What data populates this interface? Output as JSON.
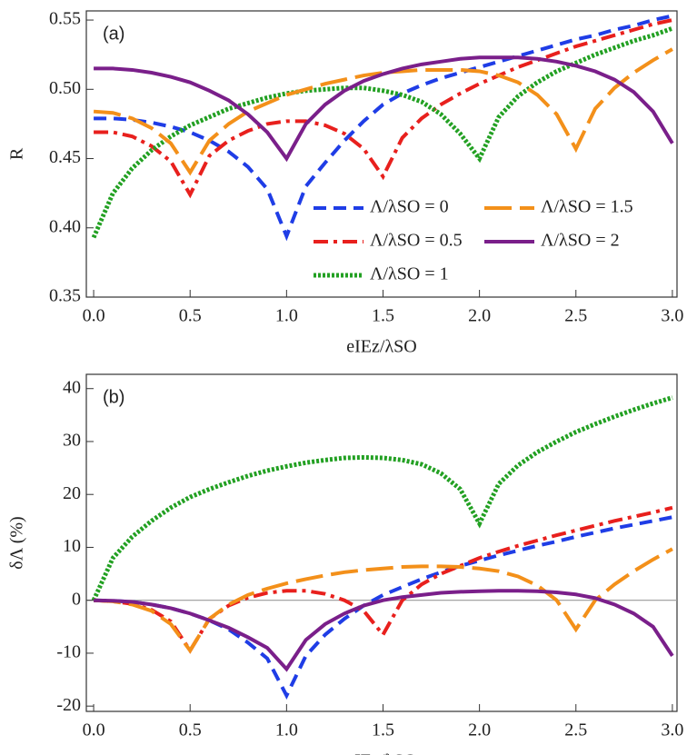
{
  "chart_data": [
    {
      "type": "line",
      "panel_label": "(a)",
      "y_label": "R",
      "x_label": "eIEz/λSO",
      "x": [
        0,
        0.1,
        0.2,
        0.3,
        0.4,
        0.5,
        0.6,
        0.7,
        0.8,
        0.9,
        1.0,
        1.1,
        1.2,
        1.3,
        1.4,
        1.5,
        1.6,
        1.7,
        1.8,
        1.9,
        2.0,
        2.1,
        2.2,
        2.3,
        2.4,
        2.5,
        2.6,
        2.7,
        2.8,
        2.9,
        3.0
      ],
      "xlim": [
        -0.038,
        3.024
      ],
      "xticks": [
        {
          "value": 0,
          "label": "0.0"
        },
        {
          "value": 0.5,
          "label": "0.5"
        },
        {
          "value": 1,
          "label": "1.0"
        },
        {
          "value": 1.5,
          "label": "1.5"
        },
        {
          "value": 2,
          "label": "2.0"
        },
        {
          "value": 2.5,
          "label": "2.5"
        },
        {
          "value": 3,
          "label": "3.0"
        }
      ],
      "ylim": [
        0.35,
        0.5566
      ],
      "yticks": [
        0.35,
        {
          "value": 0.4,
          "label": "0.40"
        },
        0.45,
        {
          "value": 0.5,
          "label": "0.50"
        },
        0.55
      ],
      "legend": "lower-right",
      "series": [
        {
          "name": "Λ/λSO = 0",
          "color": "#1f3de6",
          "dash": "dashed",
          "values": [
            0.479,
            0.479,
            0.478,
            0.476,
            0.473,
            0.469,
            0.463,
            0.455,
            0.444,
            0.428,
            0.394,
            0.43,
            0.447,
            0.463,
            0.477,
            0.489,
            0.497,
            0.503,
            0.508,
            0.512,
            0.516,
            0.52,
            0.524,
            0.528,
            0.532,
            0.536,
            0.539,
            0.543,
            0.546,
            0.55,
            0.553
          ]
        },
        {
          "name": "Λ/λSO = 0.5",
          "color": "#e8201d",
          "dash": "dashdot",
          "values": [
            0.469,
            0.469,
            0.466,
            0.459,
            0.448,
            0.424,
            0.452,
            0.463,
            0.47,
            0.475,
            0.477,
            0.477,
            0.474,
            0.468,
            0.457,
            0.437,
            0.465,
            0.479,
            0.489,
            0.497,
            0.504,
            0.51,
            0.516,
            0.521,
            0.526,
            0.531,
            0.535,
            0.539,
            0.543,
            0.547,
            0.55
          ]
        },
        {
          "name": "Λ/λSO = 1",
          "color": "#22a022",
          "dash": "dotted",
          "values": [
            0.393,
            0.425,
            0.443,
            0.456,
            0.466,
            0.474,
            0.48,
            0.486,
            0.49,
            0.494,
            0.497,
            0.499,
            0.5,
            0.501,
            0.501,
            0.499,
            0.496,
            0.491,
            0.482,
            0.468,
            0.45,
            0.48,
            0.495,
            0.505,
            0.513,
            0.519,
            0.525,
            0.53,
            0.535,
            0.539,
            0.544
          ]
        },
        {
          "name": "Λ/λSO = 1.5",
          "color": "#f3901a",
          "dash": "longdash",
          "values": [
            0.484,
            0.483,
            0.479,
            0.472,
            0.461,
            0.44,
            0.463,
            0.475,
            0.484,
            0.49,
            0.496,
            0.5,
            0.504,
            0.507,
            0.51,
            0.512,
            0.513,
            0.514,
            0.514,
            0.514,
            0.513,
            0.51,
            0.505,
            0.496,
            0.482,
            0.457,
            0.486,
            0.501,
            0.512,
            0.521,
            0.529
          ]
        },
        {
          "name": "Λ/λSO = 2",
          "color": "#7a1f8a",
          "dash": "solid",
          "values": [
            0.515,
            0.515,
            0.514,
            0.512,
            0.509,
            0.505,
            0.499,
            0.492,
            0.482,
            0.469,
            0.45,
            0.475,
            0.489,
            0.499,
            0.506,
            0.511,
            0.515,
            0.518,
            0.52,
            0.522,
            0.523,
            0.523,
            0.523,
            0.522,
            0.52,
            0.517,
            0.513,
            0.507,
            0.498,
            0.484,
            0.461
          ]
        }
      ]
    },
    {
      "type": "line",
      "panel_label": "(b)",
      "y_label": "δΛ (%)",
      "x_label": "eIEz/λSO",
      "x": [
        0,
        0.1,
        0.2,
        0.3,
        0.4,
        0.5,
        0.6,
        0.7,
        0.8,
        0.9,
        1.0,
        1.1,
        1.2,
        1.3,
        1.4,
        1.5,
        1.6,
        1.7,
        1.8,
        1.9,
        2.0,
        2.1,
        2.2,
        2.3,
        2.4,
        2.5,
        2.6,
        2.7,
        2.8,
        2.9,
        3.0
      ],
      "xlim": [
        -0.038,
        3.024
      ],
      "xticks": [
        {
          "value": 0,
          "label": "0.0"
        },
        {
          "value": 0.5,
          "label": "0.5"
        },
        {
          "value": 1,
          "label": "1.0"
        },
        {
          "value": 1.5,
          "label": "1.5"
        },
        {
          "value": 2,
          "label": "2.0"
        },
        {
          "value": 2.5,
          "label": "2.5"
        },
        {
          "value": 3,
          "label": "3.0"
        }
      ],
      "ylim": [
        -21,
        42.7
      ],
      "yticks": [
        -20,
        -10,
        0,
        10,
        20,
        30,
        40
      ],
      "series": [
        {
          "color": "#1f3de6",
          "dash": "dashed",
          "values": [
            0,
            -0.1,
            -0.3,
            -0.8,
            -1.5,
            -2.5,
            -3.8,
            -5.5,
            -8,
            -11,
            -18,
            -10.5,
            -6.5,
            -3.5,
            -1,
            1,
            2.5,
            4,
            5.3,
            6.5,
            7.5,
            8.5,
            9.4,
            10.3,
            11.1,
            12,
            12.8,
            13.6,
            14.3,
            15,
            15.7
          ]
        },
        {
          "color": "#e8201d",
          "dash": "dashdot",
          "values": [
            0,
            -0.2,
            -0.7,
            -1.8,
            -4,
            -9.5,
            -3.5,
            -1,
            0.5,
            1.4,
            1.8,
            1.8,
            1.2,
            0,
            -2,
            -6.5,
            0,
            3,
            5,
            6.5,
            8,
            9.2,
            10.3,
            11.3,
            12.3,
            13.2,
            14.1,
            15,
            15.8,
            16.6,
            17.5
          ]
        },
        {
          "color": "#22a022",
          "dash": "dotted",
          "values": [
            0,
            8,
            12,
            15,
            17.5,
            19.5,
            21,
            22.3,
            23.5,
            24.5,
            25.3,
            26,
            26.5,
            26.9,
            27,
            26.9,
            26.5,
            25.7,
            24,
            21,
            14.5,
            22,
            25.5,
            28,
            30,
            31.8,
            33.3,
            34.7,
            36,
            37.2,
            38.3
          ]
        },
        {
          "color": "#f3901a",
          "dash": "longdash",
          "values": [
            0,
            -0.2,
            -0.8,
            -2,
            -4.5,
            -9.5,
            -3.5,
            -0.8,
            1,
            2.2,
            3.2,
            4,
            4.7,
            5.3,
            5.7,
            6,
            6.3,
            6.4,
            6.4,
            6.3,
            6,
            5.5,
            4.5,
            2.8,
            0,
            -5.5,
            0,
            3,
            5.5,
            7.7,
            9.7
          ]
        },
        {
          "color": "#7a1f8a",
          "dash": "solid",
          "values": [
            0,
            -0.1,
            -0.3,
            -0.8,
            -1.5,
            -2.5,
            -3.8,
            -5.2,
            -7,
            -9,
            -13,
            -7.5,
            -4.5,
            -2.5,
            -1,
            0,
            0.6,
            1,
            1.4,
            1.6,
            1.7,
            1.8,
            1.8,
            1.7,
            1.5,
            1.1,
            0.4,
            -0.8,
            -2.5,
            -5,
            -10.5
          ]
        }
      ]
    }
  ]
}
